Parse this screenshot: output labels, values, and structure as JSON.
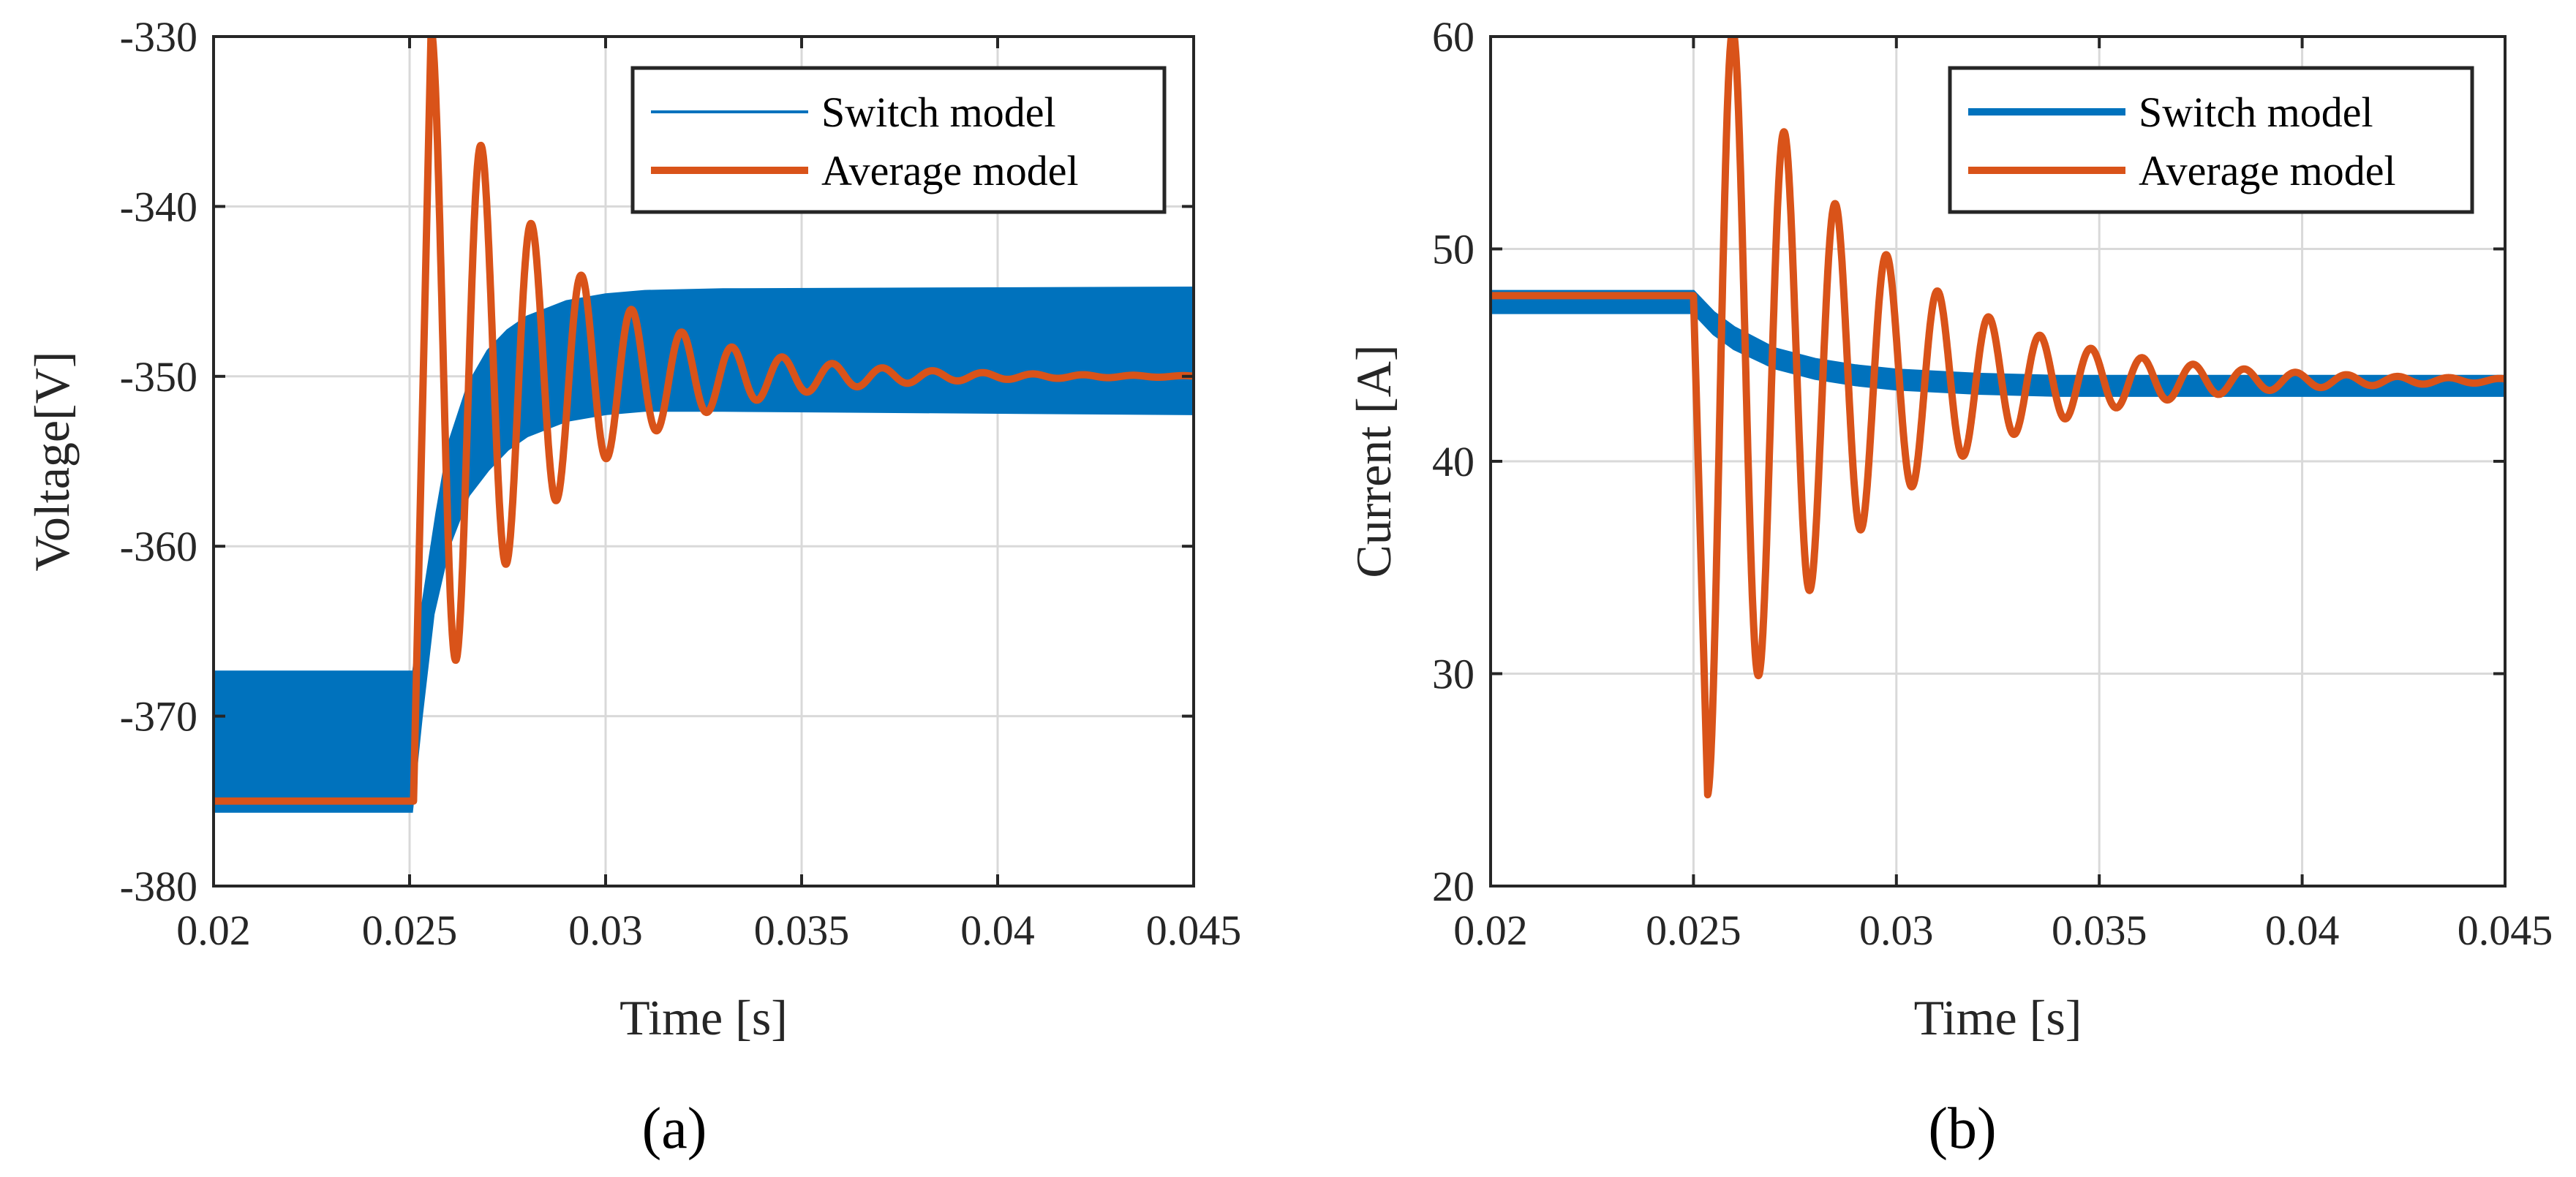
{
  "colors": {
    "switch": "#0072BD",
    "average": "#D95319",
    "axis": "#262626",
    "grid": "#d9d9d9"
  },
  "chart_data": [
    {
      "type": "line",
      "caption": "(a)",
      "xlabel": "Time [s]",
      "ylabel": "Voltage[V]",
      "xlim": [
        0.02,
        0.045
      ],
      "ylim": [
        -380,
        -330
      ],
      "xticks": [
        0.02,
        0.025,
        0.03,
        0.035,
        0.04,
        0.045
      ],
      "xtick_labels": [
        "0.02",
        "0.025",
        "0.03",
        "0.035",
        "0.04",
        "0.045"
      ],
      "yticks": [
        -380,
        -370,
        -360,
        -350,
        -340,
        -330
      ],
      "ytick_labels": [
        "-380",
        "-370",
        "-360",
        "-350",
        "-340",
        "-330"
      ],
      "grid": true,
      "legend_position": "top-right",
      "series": [
        {
          "name": "Switch model",
          "style": "band",
          "upper": [
            [
              0.02,
              -367.4
            ],
            [
              0.0251,
              -367.4
            ],
            [
              0.0253,
              -364
            ],
            [
              0.0257,
              -358
            ],
            [
              0.026,
              -354
            ],
            [
              0.0265,
              -350.5
            ],
            [
              0.027,
              -348.5
            ],
            [
              0.0275,
              -347.3
            ],
            [
              0.028,
              -346.5
            ],
            [
              0.029,
              -345.6
            ],
            [
              0.03,
              -345.2
            ],
            [
              0.031,
              -345
            ],
            [
              0.033,
              -344.9
            ],
            [
              0.045,
              -344.8
            ]
          ],
          "lower": [
            [
              0.02,
              -375.6
            ],
            [
              0.02505,
              -375.6
            ],
            [
              0.0253,
              -370
            ],
            [
              0.0256,
              -364
            ],
            [
              0.026,
              -360
            ],
            [
              0.0265,
              -357
            ],
            [
              0.027,
              -355.5
            ],
            [
              0.0275,
              -354.3
            ],
            [
              0.028,
              -353.5
            ],
            [
              0.029,
              -352.6
            ],
            [
              0.03,
              -352.2
            ],
            [
              0.031,
              -352
            ],
            [
              0.033,
              -352
            ],
            [
              0.045,
              -352.2
            ]
          ]
        },
        {
          "name": "Average model",
          "style": "damped",
          "pre_value": -375,
          "step_time": 0.0251,
          "rise_end_time": 0.02555,
          "peak_value": -329.5,
          "final_value": -350,
          "oscillation_period": 0.00128,
          "decay_time_constant": 0.0031,
          "end_time": 0.045
        }
      ]
    },
    {
      "type": "line",
      "caption": "(b)",
      "xlabel": "Time [s]",
      "ylabel": "Current [A]",
      "xlim": [
        0.02,
        0.045
      ],
      "ylim": [
        20,
        60
      ],
      "xticks": [
        0.02,
        0.025,
        0.03,
        0.035,
        0.04,
        0.045
      ],
      "xtick_labels": [
        "0.02",
        "0.025",
        "0.03",
        "0.035",
        "0.04",
        "0.045"
      ],
      "yticks": [
        20,
        30,
        40,
        50,
        60
      ],
      "ytick_labels": [
        "20",
        "30",
        "40",
        "50",
        "60"
      ],
      "grid": true,
      "legend_position": "top-right",
      "series": [
        {
          "name": "Switch model",
          "style": "band",
          "upper": [
            [
              0.02,
              48.0
            ],
            [
              0.025,
              48.0
            ],
            [
              0.0255,
              47.0
            ],
            [
              0.026,
              46.3
            ],
            [
              0.027,
              45.3
            ],
            [
              0.028,
              44.8
            ],
            [
              0.029,
              44.5
            ],
            [
              0.03,
              44.3
            ],
            [
              0.032,
              44.1
            ],
            [
              0.034,
              44.0
            ],
            [
              0.045,
              44.0
            ]
          ],
          "lower": [
            [
              0.02,
              47.0
            ],
            [
              0.025,
              47.0
            ],
            [
              0.0255,
              46.0
            ],
            [
              0.026,
              45.3
            ],
            [
              0.027,
              44.4
            ],
            [
              0.028,
              43.9
            ],
            [
              0.029,
              43.6
            ],
            [
              0.03,
              43.4
            ],
            [
              0.032,
              43.2
            ],
            [
              0.034,
              43.1
            ],
            [
              0.045,
              43.1
            ]
          ]
        },
        {
          "name": "Average model",
          "style": "damped",
          "pre_value": 47.8,
          "step_time": 0.025,
          "initial_direction": -1,
          "first_peak_time": 0.02535,
          "first_peak_value": 24.3,
          "final_value": 43.8,
          "oscillation_period": 0.00126,
          "decay_time_constant": 0.0037,
          "end_time": 0.045
        }
      ]
    }
  ]
}
